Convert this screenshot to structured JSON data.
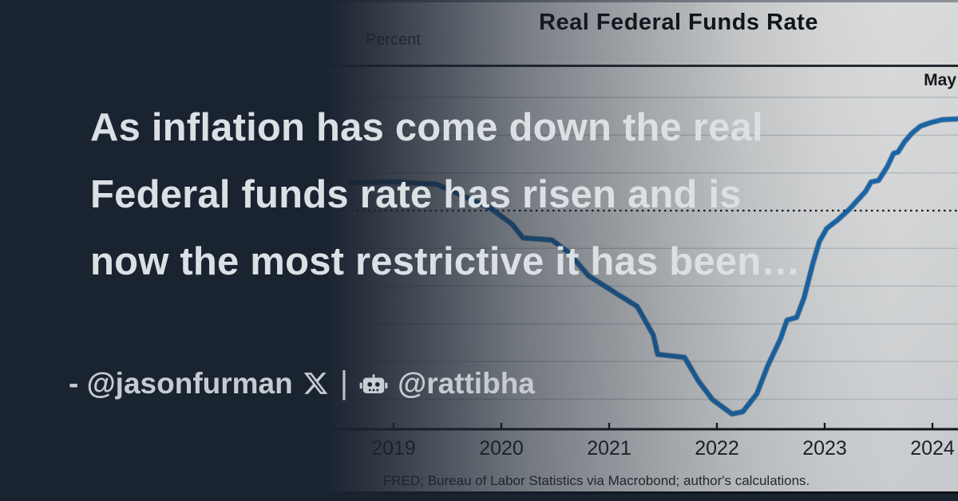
{
  "card": {
    "background_color": "#1a2330",
    "accent_blue": "#1865a8"
  },
  "headline": {
    "lines": [
      "As inflation has come down the real",
      "Federal funds rate has risen and is",
      "now the most restrictive it has been…"
    ]
  },
  "attribution": {
    "author_prefix": "- @jasonfurman",
    "separator": "|",
    "archive_handle": "@rattibha"
  },
  "chart": {
    "title": "Real Federal Funds Rate",
    "y_axis_label": "Percent",
    "last_obs_label": "May",
    "source": "FRED; Bureau of Labor Statistics via Macrobond; author's calculations."
  },
  "chart_data": {
    "type": "line",
    "title": "Real Federal Funds Rate",
    "ylabel": "Percent",
    "xlabel": "",
    "x_ticks": [
      2019,
      2020,
      2021,
      2022,
      2023,
      2024
    ],
    "gridline_values": [
      3,
      2,
      1,
      -1,
      -2,
      -3,
      -4,
      -5
    ],
    "zero_line_value": 0,
    "zero_line_style": "dotted",
    "ylim": [
      -5.8,
      3.5
    ],
    "xlim": [
      2018.55,
      2024.25
    ],
    "grid": true,
    "legend": "none",
    "annotation_top_right": "May",
    "source": "FRED; Bureau of Labor Statistics via Macrobond; author's calculations.",
    "series": [
      {
        "name": "Real Federal Funds Rate",
        "color": "#1865a8",
        "points": [
          [
            2018.6,
            0.75
          ],
          [
            2019.05,
            0.76
          ],
          [
            2019.4,
            0.7
          ],
          [
            2019.65,
            0.38
          ],
          [
            2019.9,
            0.06
          ],
          [
            2020.1,
            -0.36
          ],
          [
            2020.2,
            -0.72
          ],
          [
            2020.47,
            -0.78
          ],
          [
            2020.62,
            -1.1
          ],
          [
            2020.81,
            -1.73
          ],
          [
            2021.07,
            -2.2
          ],
          [
            2021.26,
            -2.54
          ],
          [
            2021.41,
            -3.3
          ],
          [
            2021.45,
            -3.81
          ],
          [
            2021.7,
            -3.89
          ],
          [
            2021.83,
            -4.52
          ],
          [
            2021.96,
            -5.01
          ],
          [
            2022.14,
            -5.39
          ],
          [
            2022.24,
            -5.33
          ],
          [
            2022.37,
            -4.86
          ],
          [
            2022.47,
            -4.12
          ],
          [
            2022.59,
            -3.4
          ],
          [
            2022.65,
            -2.9
          ],
          [
            2022.74,
            -2.83
          ],
          [
            2022.81,
            -2.3
          ],
          [
            2022.89,
            -1.4
          ],
          [
            2022.95,
            -0.82
          ],
          [
            2023.02,
            -0.47
          ],
          [
            2023.12,
            -0.25
          ],
          [
            2023.23,
            0.04
          ],
          [
            2023.38,
            0.51
          ],
          [
            2023.43,
            0.76
          ],
          [
            2023.5,
            0.8
          ],
          [
            2023.58,
            1.16
          ],
          [
            2023.64,
            1.52
          ],
          [
            2023.68,
            1.55
          ],
          [
            2023.74,
            1.82
          ],
          [
            2023.81,
            2.05
          ],
          [
            2023.89,
            2.24
          ],
          [
            2023.98,
            2.33
          ],
          [
            2024.09,
            2.41
          ],
          [
            2024.24,
            2.43
          ]
        ]
      }
    ]
  }
}
